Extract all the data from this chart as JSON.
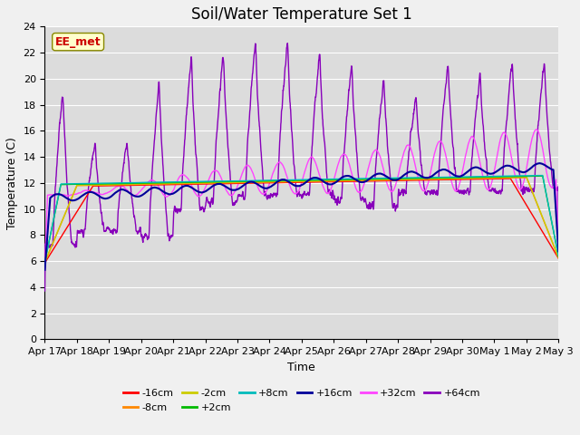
{
  "title": "Soil/Water Temperature Set 1",
  "xlabel": "Time",
  "ylabel": "Temperature (C)",
  "ylim": [
    0,
    24
  ],
  "yticks": [
    0,
    2,
    4,
    6,
    8,
    10,
    12,
    14,
    16,
    18,
    20,
    22,
    24
  ],
  "background_color": "#dcdcdc",
  "plot_bg_color": "#dcdcdc",
  "series": {
    "-16cm": {
      "color": "#ff0000"
    },
    "-8cm": {
      "color": "#ff8800"
    },
    "-2cm": {
      "color": "#cccc00"
    },
    "+2cm": {
      "color": "#00bb00"
    },
    "+8cm": {
      "color": "#00bbbb"
    },
    "+16cm": {
      "color": "#000099"
    },
    "+32cm": {
      "color": "#ff44ff"
    },
    "+64cm": {
      "color": "#8800bb"
    }
  },
  "watermark_text": "EE_met",
  "watermark_color": "#cc0000",
  "watermark_bg": "#ffffcc",
  "title_fontsize": 12,
  "axis_fontsize": 9,
  "tick_fontsize": 8,
  "n_days": 16,
  "xtick_start_day": 17,
  "legend_ncol_row1": 6,
  "legend_labels_row1": [
    "-16cm",
    "-8cm",
    "-2cm",
    "+2cm",
    "+8cm",
    "+16cm"
  ],
  "legend_labels_row2": [
    "+32cm",
    "+64cm"
  ]
}
